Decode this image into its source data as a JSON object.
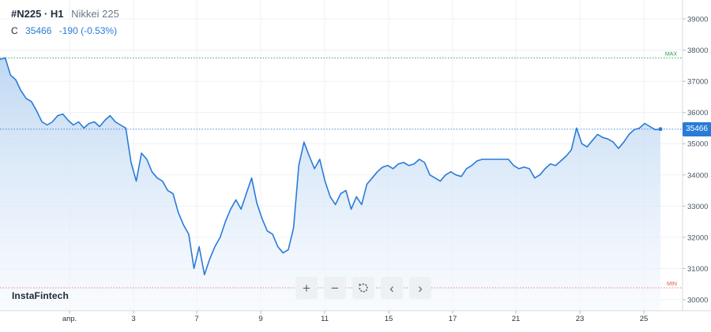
{
  "legend": {
    "ticker": "#N225 · H1",
    "name": "Nikkei 225",
    "close_label": "C",
    "close_value": "35466",
    "change": "-190 (-0.53%)"
  },
  "brand": "InstaFintech",
  "toolbar": {
    "zoom_in": "+",
    "zoom_out": "−",
    "prev": "‹",
    "next": "›"
  },
  "price_tag": "35466",
  "markers": {
    "max": "MAX",
    "min": "MIN"
  },
  "colors": {
    "line": "#2a7bd8",
    "area_top": "#bcd6f2",
    "area_bottom": "#f5f9fe",
    "max_line": "#2e9a4b",
    "min_line": "#e05a5a",
    "grid": "#eef0f3"
  },
  "chart_data": {
    "type": "area",
    "title": "",
    "xlabel": "",
    "ylabel": "",
    "x_tick_labels": [
      "апр.",
      "3",
      "7",
      "9",
      "11",
      "15",
      "17",
      "21",
      "23",
      "25"
    ],
    "y_tick_labels": [
      "39000",
      "38000",
      "37000",
      "36000",
      "35000",
      "34000",
      "33000",
      "32000",
      "31000",
      "30000"
    ],
    "ylim": [
      30000,
      39000
    ],
    "max_value": 37750,
    "min_value": 30380,
    "last_value": 35466,
    "grid": true,
    "series": [
      {
        "values": [
          37700,
          37750,
          37200,
          37050,
          36700,
          36450,
          36350,
          36050,
          35700,
          35600,
          35700,
          35900,
          35950,
          35750,
          35600,
          35700,
          35500,
          35650,
          35700,
          35550,
          35750,
          35900,
          35700,
          35600,
          35500,
          34400,
          33800,
          34700,
          34500,
          34100,
          33900,
          33800,
          33500,
          33400,
          32800,
          32400,
          32100,
          31000,
          31700,
          30800,
          31300,
          31700,
          32000,
          32500,
          32900,
          33200,
          32900,
          33400,
          33900,
          33100,
          32600,
          32200,
          32100,
          31700,
          31500,
          31600,
          32300,
          34300,
          35050,
          34600,
          34200,
          34500,
          33800,
          33300,
          33050,
          33400,
          33500,
          32900,
          33300,
          33050,
          33700,
          33900,
          34100,
          34250,
          34300,
          34200,
          34350,
          34400,
          34300,
          34350,
          34500,
          34400,
          34000,
          33900,
          33800,
          34000,
          34100,
          34000,
          33950,
          34200,
          34300,
          34450,
          34500,
          34500,
          34500,
          34500,
          34500,
          34500,
          34300,
          34200,
          34250,
          34200,
          33900,
          34000,
          34200,
          34350,
          34300,
          34450,
          34600,
          34800,
          35500,
          35000,
          34900,
          35100,
          35300,
          35200,
          35150,
          35050,
          34850,
          35050,
          35300,
          35450,
          35500,
          35650,
          35550,
          35450,
          35466
        ]
      }
    ]
  }
}
